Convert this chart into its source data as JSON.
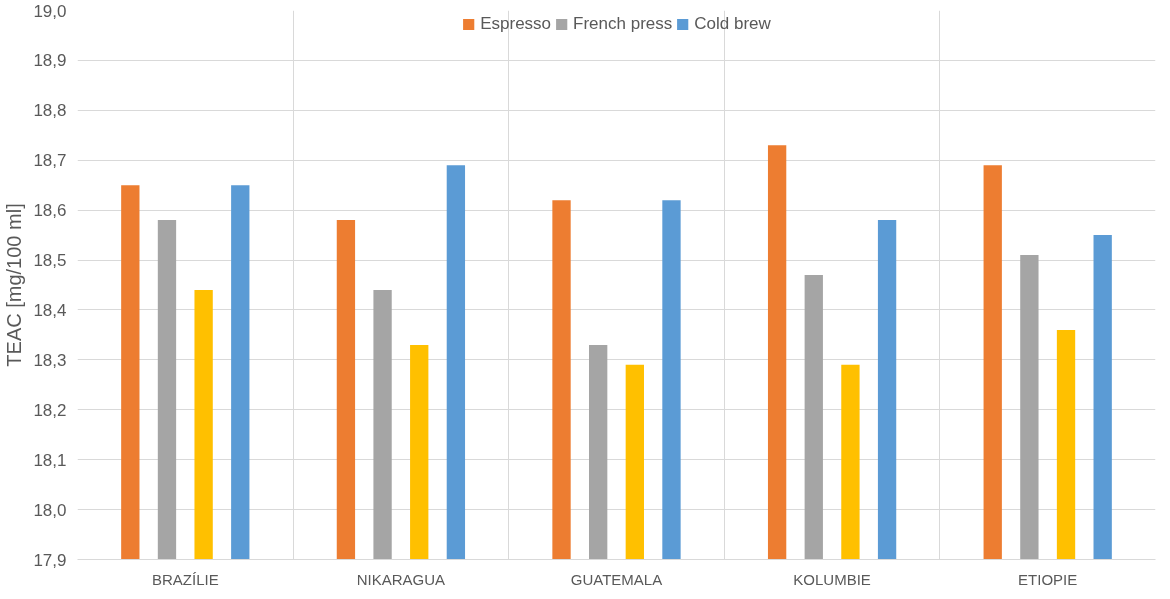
{
  "chart_data": {
    "type": "bar",
    "ylabel": "TEAC [mg/100 ml]",
    "categories": [
      "BRAZÍLIE",
      "NIKARAGUA",
      "GUATEMALA",
      "KOLUMBIE",
      "ETIOPIE"
    ],
    "series": [
      {
        "name": "Espresso",
        "color": "#ed7d31",
        "values": [
          18.65,
          18.58,
          18.62,
          18.73,
          18.69
        ]
      },
      {
        "name": "French press",
        "color": "#a5a5a5",
        "values": [
          18.58,
          18.44,
          18.33,
          18.47,
          18.51
        ]
      },
      {
        "color": "#ffc000",
        "values": [
          18.44,
          18.33,
          18.29,
          18.29,
          18.36
        ]
      },
      {
        "name": "Cold brew",
        "color": "#5b9bd5",
        "values": [
          18.65,
          18.69,
          18.62,
          18.58,
          18.55
        ]
      }
    ],
    "ylim": [
      17.9,
      19.0
    ],
    "yticks": [
      {
        "value": 17.9,
        "label": "17,9"
      },
      {
        "value": 18.0,
        "label": "18,0"
      },
      {
        "value": 18.1,
        "label": "18,1"
      },
      {
        "value": 18.2,
        "label": "18,2"
      },
      {
        "value": 18.3,
        "label": "18,3"
      },
      {
        "value": 18.4,
        "label": "18,4"
      },
      {
        "value": 18.5,
        "label": "18,5"
      },
      {
        "value": 18.6,
        "label": "18,6"
      },
      {
        "value": 18.7,
        "label": "18,7"
      },
      {
        "value": 18.8,
        "label": "18,8"
      },
      {
        "value": 18.9,
        "label": "18,9"
      },
      {
        "value": 19.0,
        "label": "19,0"
      }
    ],
    "grid": true,
    "legend": "top"
  }
}
